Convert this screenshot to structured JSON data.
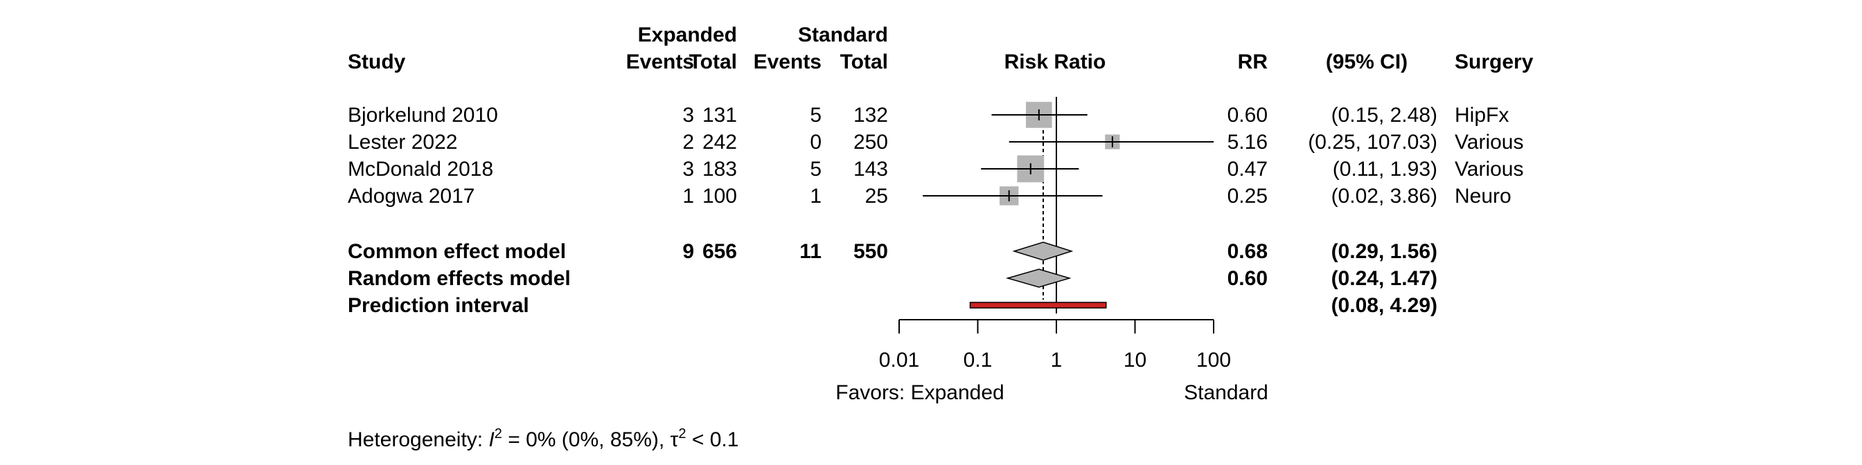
{
  "chart_data": {
    "type": "forest",
    "x_scale": "log",
    "x_ticks": [
      0.01,
      0.1,
      1,
      10,
      100
    ],
    "x_tick_labels": [
      "0.01",
      "0.1",
      "1",
      "10",
      "100"
    ],
    "xlim": [
      0.01,
      100
    ],
    "null_value": 1,
    "columns": {
      "group1": "Expanded",
      "group2": "Standard",
      "study": "Study",
      "events": "Events",
      "total": "Total",
      "effect": "Risk Ratio",
      "rr": "RR",
      "ci": "(95% CI)",
      "subgroup": "Surgery"
    },
    "studies": [
      {
        "name": "Bjorkelund 2010",
        "e1": "3",
        "n1": "131",
        "e2": "5",
        "n2": "132",
        "rr": 0.6,
        "lo": 0.15,
        "hi": 2.48,
        "weight": 0.35,
        "rr_text": "0.60",
        "ci_text": "(0.15,   2.48)",
        "group": "HipFx"
      },
      {
        "name": "Lester 2022",
        "e1": "2",
        "n1": "242",
        "e2": "0",
        "n2": "250",
        "rr": 5.16,
        "lo": 0.25,
        "hi": 107.03,
        "weight": 0.07,
        "rr_text": "5.16",
        "ci_text": "(0.25, 107.03)",
        "group": "Various"
      },
      {
        "name": "McDonald 2018",
        "e1": "3",
        "n1": "183",
        "e2": "5",
        "n2": "143",
        "rr": 0.47,
        "lo": 0.11,
        "hi": 1.93,
        "weight": 0.38,
        "rr_text": "0.47",
        "ci_text": "(0.11,   1.93)",
        "group": "Various"
      },
      {
        "name": "Adogwa 2017",
        "e1": "1",
        "n1": "100",
        "e2": "1",
        "n2": "25",
        "rr": 0.25,
        "lo": 0.02,
        "hi": 3.86,
        "weight": 0.15,
        "rr_text": "0.25",
        "ci_text": "(0.02,   3.86)",
        "group": "Neuro"
      }
    ],
    "pooled": [
      {
        "name": "Common effect model",
        "e1": "9",
        "n1": "656",
        "e2": "11",
        "n2": "550",
        "rr": 0.68,
        "lo": 0.29,
        "hi": 1.56,
        "rr_text": "0.68",
        "ci_text": "(0.29,   1.56)"
      },
      {
        "name": "Random effects model",
        "e1": "",
        "n1": "",
        "e2": "",
        "n2": "",
        "rr": 0.6,
        "lo": 0.24,
        "hi": 1.47,
        "rr_text": "0.60",
        "ci_text": "(0.24,   1.47)"
      }
    ],
    "prediction": {
      "name": "Prediction interval",
      "lo": 0.08,
      "hi": 4.29,
      "ci_text": "(0.08,   4.29)"
    },
    "favors_left": "Favors: Expanded",
    "favors_right": "Standard",
    "heterogeneity": {
      "prefix": "Heterogeneity: ",
      "i2_symbol": "I",
      "sup": "2",
      "i2_text": " = 0% (0%, 85%), ",
      "tau_symbol": "τ",
      "tau_text": " < 0.1"
    },
    "colors": {
      "square": "#b4b4b4",
      "diamond": "#b4b4b4",
      "prediction": "#cc2222",
      "line": "#000000"
    }
  }
}
